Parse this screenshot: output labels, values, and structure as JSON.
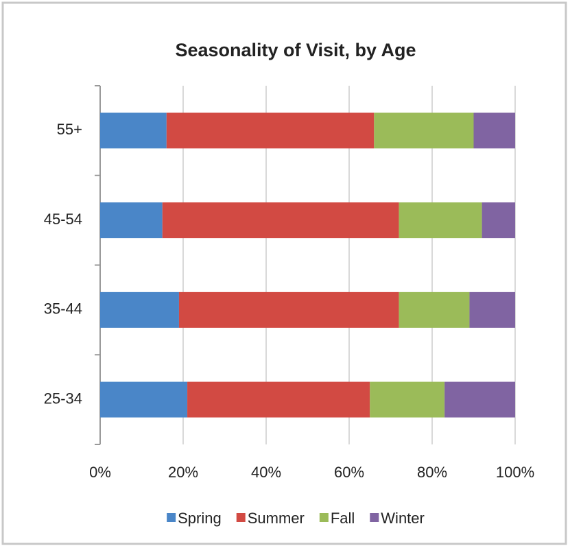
{
  "chart_data": {
    "type": "stacked_bar_horizontal",
    "title": "Seasonality of Visit, by Age",
    "categories": [
      "25-34",
      "35-44",
      "45-54",
      "55+"
    ],
    "series": [
      {
        "name": "Spring",
        "color": "#4a86c8",
        "values": [
          21,
          19,
          15,
          16
        ]
      },
      {
        "name": "Summer",
        "color": "#d24a43",
        "values": [
          44,
          53,
          57,
          50
        ]
      },
      {
        "name": "Fall",
        "color": "#9bbb59",
        "values": [
          18,
          17,
          20,
          24
        ]
      },
      {
        "name": "Winter",
        "color": "#8064a2",
        "values": [
          17,
          11,
          8,
          10
        ]
      }
    ],
    "xlim": [
      0,
      100
    ],
    "xticks": [
      {
        "value": 0,
        "label": "0%"
      },
      {
        "value": 20,
        "label": "20%"
      },
      {
        "value": 40,
        "label": "40%"
      },
      {
        "value": 60,
        "label": "60%"
      },
      {
        "value": 80,
        "label": "80%"
      },
      {
        "value": 100,
        "label": "100%"
      }
    ],
    "grid": true,
    "legend": "bottom"
  }
}
